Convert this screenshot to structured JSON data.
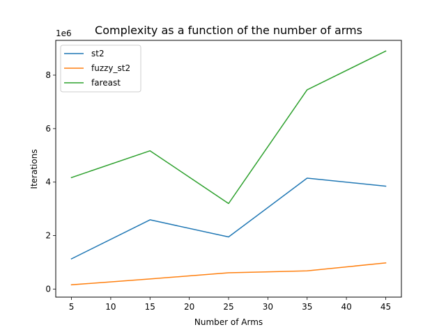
{
  "chart_data": {
    "type": "line",
    "title": "Complexity as a function of the number of arms",
    "xlabel": "Number of Arms",
    "ylabel": "Iterations",
    "y_offset_label": "1e6",
    "x": [
      5,
      15,
      25,
      35,
      45
    ],
    "xlim": [
      3,
      47
    ],
    "ylim": [
      -300000,
      9300000
    ],
    "xticks": [
      5,
      10,
      15,
      20,
      25,
      30,
      35,
      40,
      45
    ],
    "yticks": [
      0,
      2000000,
      4000000,
      6000000,
      8000000
    ],
    "ytick_labels": [
      "0",
      "2",
      "4",
      "6",
      "8"
    ],
    "grid": false,
    "legend_position": "upper-left",
    "series": [
      {
        "name": "st2",
        "color": "#1f77b4",
        "values": [
          1130000,
          2590000,
          1950000,
          4150000,
          3850000
        ]
      },
      {
        "name": "fuzzy_st2",
        "color": "#ff7f0e",
        "values": [
          160000,
          380000,
          610000,
          680000,
          980000
        ]
      },
      {
        "name": "fareast",
        "color": "#2ca02c",
        "values": [
          4170000,
          5170000,
          3200000,
          7450000,
          8900000
        ]
      }
    ]
  }
}
